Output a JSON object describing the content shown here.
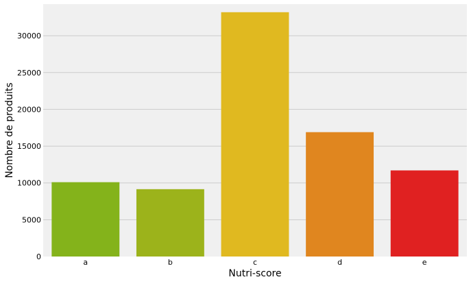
{
  "chart_data": {
    "type": "bar",
    "categories": [
      "a",
      "b",
      "c",
      "d",
      "e"
    ],
    "values": [
      10100,
      9150,
      33200,
      16900,
      11700
    ],
    "bar_colors": [
      "#84b31b",
      "#9cb31b",
      "#e0b920",
      "#e0861f",
      "#e02121"
    ],
    "xlabel": "Nutri-score",
    "ylabel": "Nombre de produits",
    "ylim": [
      0,
      34300
    ],
    "yticks": [
      0,
      5000,
      10000,
      15000,
      20000,
      25000,
      30000
    ],
    "ytick_labels": [
      "0",
      "5000",
      "10000",
      "15000",
      "20000",
      "25000",
      "30000"
    ],
    "grid": "horizontal",
    "background_color": "#f0f0f0",
    "grid_color": "#cbcbcb"
  }
}
